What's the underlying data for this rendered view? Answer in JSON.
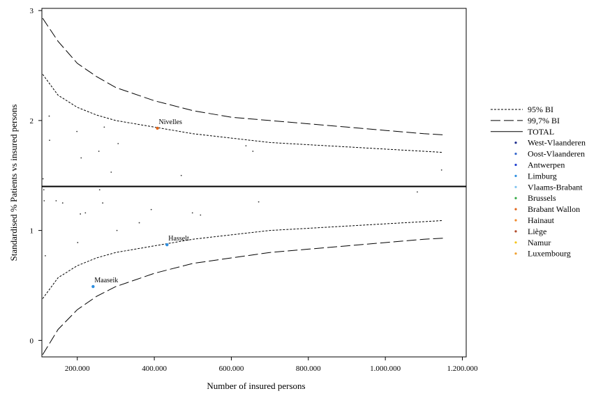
{
  "chart_data": {
    "type": "scatter",
    "title": "",
    "xlabel": "Number of insured persons",
    "ylabel": "Standardised % Patients vs insured persons",
    "xlim": [
      108000,
      1210000
    ],
    "ylim": [
      -0.15,
      3.02
    ],
    "x_ticks": [
      200000,
      400000,
      600000,
      800000,
      1000000,
      1200000
    ],
    "x_tick_labels": [
      "200.000",
      "400.000",
      "600.000",
      "800.000",
      "1.000.000",
      "1.200.000"
    ],
    "y_ticks": [
      0,
      1,
      2,
      3
    ],
    "y_tick_labels": [
      "0",
      "1",
      "2",
      "3"
    ],
    "grid": false,
    "legend_position": "right",
    "total_value": 1.4,
    "legend": [
      {
        "label": "95% BI",
        "kind": "line",
        "style": "dotted"
      },
      {
        "label": "99,7% BI",
        "kind": "line",
        "style": "dashed"
      },
      {
        "label": "TOTAL",
        "kind": "line",
        "style": "solid"
      },
      {
        "label": "West-Vlaanderen",
        "kind": "marker",
        "color": "#1a2a8c"
      },
      {
        "label": "Oost-Vlaanderen",
        "kind": "marker",
        "color": "#3366cc"
      },
      {
        "label": "Antwerpen",
        "kind": "marker",
        "color": "#1f3fd1"
      },
      {
        "label": "Limburg",
        "kind": "marker",
        "color": "#2e8fe0"
      },
      {
        "label": "Vlaams-Brabant",
        "kind": "marker",
        "color": "#7fc3f0"
      },
      {
        "label": "Brussels",
        "kind": "marker",
        "color": "#33aa44"
      },
      {
        "label": "Brabant Wallon",
        "kind": "marker",
        "color": "#e0651a"
      },
      {
        "label": "Hainaut",
        "kind": "marker",
        "color": "#f0882a"
      },
      {
        "label": "Liège",
        "kind": "marker",
        "color": "#b04a2a"
      },
      {
        "label": "Namur",
        "kind": "marker",
        "color": "#f5c518"
      },
      {
        "label": "Luxembourg",
        "kind": "marker",
        "color": "#f0a030"
      }
    ],
    "series": [
      {
        "name": "95% BI",
        "style": "dotted",
        "upper": [
          [
            110000,
            2.42
          ],
          [
            150000,
            2.23
          ],
          [
            200000,
            2.12
          ],
          [
            250000,
            2.05
          ],
          [
            300000,
            2.0
          ],
          [
            400000,
            1.94
          ],
          [
            500000,
            1.88
          ],
          [
            600000,
            1.84
          ],
          [
            700000,
            1.8
          ],
          [
            800000,
            1.78
          ],
          [
            900000,
            1.76
          ],
          [
            1000000,
            1.74
          ],
          [
            1100000,
            1.72
          ],
          [
            1150000,
            1.71
          ]
        ],
        "lower": [
          [
            110000,
            0.38
          ],
          [
            150000,
            0.57
          ],
          [
            200000,
            0.68
          ],
          [
            250000,
            0.75
          ],
          [
            300000,
            0.8
          ],
          [
            400000,
            0.86
          ],
          [
            500000,
            0.92
          ],
          [
            600000,
            0.96
          ],
          [
            700000,
            1.0
          ],
          [
            800000,
            1.02
          ],
          [
            900000,
            1.04
          ],
          [
            1000000,
            1.06
          ],
          [
            1100000,
            1.08
          ],
          [
            1150000,
            1.09
          ]
        ]
      },
      {
        "name": "99,7% BI",
        "style": "dashed",
        "upper": [
          [
            110000,
            2.93
          ],
          [
            150000,
            2.72
          ],
          [
            200000,
            2.52
          ],
          [
            250000,
            2.4
          ],
          [
            300000,
            2.3
          ],
          [
            400000,
            2.18
          ],
          [
            500000,
            2.09
          ],
          [
            600000,
            2.03
          ],
          [
            700000,
            2.0
          ],
          [
            800000,
            1.97
          ],
          [
            900000,
            1.94
          ],
          [
            1000000,
            1.91
          ],
          [
            1100000,
            1.88
          ],
          [
            1150000,
            1.87
          ]
        ],
        "lower": [
          [
            110000,
            -0.13
          ],
          [
            150000,
            0.1
          ],
          [
            200000,
            0.28
          ],
          [
            250000,
            0.4
          ],
          [
            300000,
            0.49
          ],
          [
            400000,
            0.61
          ],
          [
            500000,
            0.7
          ],
          [
            600000,
            0.75
          ],
          [
            700000,
            0.8
          ],
          [
            800000,
            0.83
          ],
          [
            900000,
            0.86
          ],
          [
            1000000,
            0.89
          ],
          [
            1100000,
            0.92
          ],
          [
            1150000,
            0.93
          ]
        ]
      }
    ],
    "points": [
      {
        "x": 111000,
        "y": 1.47,
        "color": "#1a2a8c"
      },
      {
        "x": 113000,
        "y": 1.37,
        "color": "#3366cc"
      },
      {
        "x": 114000,
        "y": 1.27,
        "color": "#1a2a8c"
      },
      {
        "x": 117000,
        "y": 0.77,
        "color": "#1f3fd1"
      },
      {
        "x": 127000,
        "y": 2.04,
        "color": "#3366cc"
      },
      {
        "x": 128000,
        "y": 1.82,
        "color": "#1a2a8c"
      },
      {
        "x": 145000,
        "y": 1.27,
        "color": "#1f3fd1"
      },
      {
        "x": 162000,
        "y": 1.25,
        "color": "#1a2a8c"
      },
      {
        "x": 199000,
        "y": 1.9,
        "color": "#3366cc"
      },
      {
        "x": 201000,
        "y": 0.89,
        "color": "#1f3fd1"
      },
      {
        "x": 208000,
        "y": 1.15,
        "color": "#1a2a8c"
      },
      {
        "x": 210000,
        "y": 1.66,
        "color": "#3366cc"
      },
      {
        "x": 221000,
        "y": 1.16,
        "color": "#1f3fd1"
      },
      {
        "x": 241000,
        "y": 0.49,
        "color": "#2e8fe0",
        "label": "Maaseik"
      },
      {
        "x": 256000,
        "y": 1.72,
        "color": "#1a2a8c"
      },
      {
        "x": 258000,
        "y": 1.37,
        "color": "#3366cc"
      },
      {
        "x": 266000,
        "y": 1.25,
        "color": "#1f3fd1"
      },
      {
        "x": 270000,
        "y": 1.94,
        "color": "#1a2a8c"
      },
      {
        "x": 288000,
        "y": 1.53,
        "color": "#3366cc"
      },
      {
        "x": 303000,
        "y": 1.0,
        "color": "#1f3fd1"
      },
      {
        "x": 306000,
        "y": 1.79,
        "color": "#1a2a8c"
      },
      {
        "x": 361000,
        "y": 1.07,
        "color": "#3366cc"
      },
      {
        "x": 392000,
        "y": 1.19,
        "color": "#1f3fd1"
      },
      {
        "x": 408000,
        "y": 1.93,
        "color": "#e0651a",
        "label": "Nivelles"
      },
      {
        "x": 433000,
        "y": 0.87,
        "color": "#2e8fe0",
        "label": "Hasselt"
      },
      {
        "x": 470000,
        "y": 1.5,
        "color": "#1a2a8c"
      },
      {
        "x": 499000,
        "y": 1.16,
        "color": "#3366cc"
      },
      {
        "x": 520000,
        "y": 1.14,
        "color": "#1f3fd1"
      },
      {
        "x": 638000,
        "y": 1.77,
        "color": "#1a2a8c"
      },
      {
        "x": 656000,
        "y": 1.72,
        "color": "#3366cc"
      },
      {
        "x": 671000,
        "y": 1.26,
        "color": "#1f3fd1"
      },
      {
        "x": 1083000,
        "y": 1.35,
        "color": "#1a2a8c"
      },
      {
        "x": 1146000,
        "y": 1.55,
        "color": "#3366cc"
      }
    ]
  }
}
